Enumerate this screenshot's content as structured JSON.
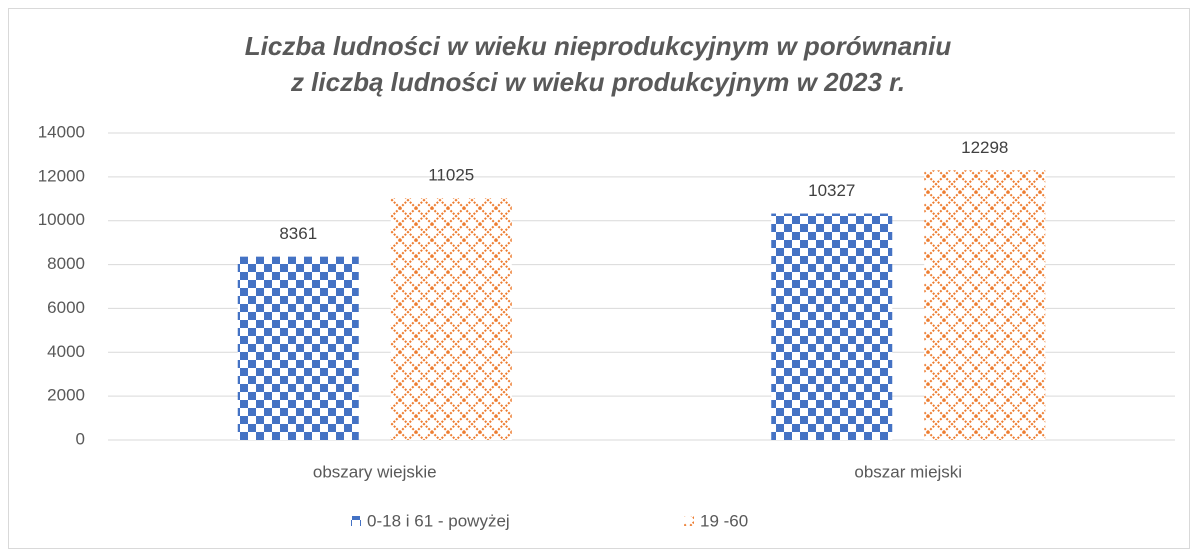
{
  "chart_data": {
    "type": "bar",
    "title": [
      "Liczba ludności w wieku nieprodukcyjnym w porównaniu",
      "z liczbą ludności w wieku produkcyjnym w 2023 r."
    ],
    "categories": [
      "obszary wiejskie",
      "obszar miejski"
    ],
    "series": [
      {
        "name": "0-18 i 61 - powyżej",
        "color": "#4472c4",
        "values": [
          8361,
          10327
        ]
      },
      {
        "name": "19 -60",
        "color": "#ed7d31",
        "values": [
          11025,
          12298
        ]
      }
    ],
    "ylim": [
      0,
      14000
    ],
    "yticks": [
      0,
      2000,
      4000,
      6000,
      8000,
      10000,
      12000,
      14000
    ],
    "grid": true,
    "legend": "bottom"
  }
}
